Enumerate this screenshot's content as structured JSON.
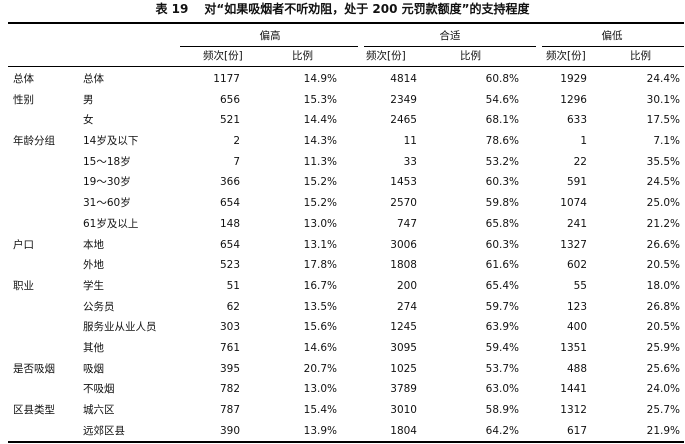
{
  "table": {
    "number": "表 19",
    "title": "对“如果吸烟者不听劝阻，处于 200 元罚款额度”的支持程度",
    "groups": [
      "偏高",
      "合适",
      "偏低"
    ],
    "col_freq": "频次[份]",
    "col_ratio": "比例",
    "rows": [
      {
        "cat": "总体",
        "sub": "总体",
        "v": [
          "1177",
          "14.9%",
          "4814",
          "60.8%",
          "1929",
          "24.4%"
        ]
      },
      {
        "cat": "性别",
        "sub": "男",
        "v": [
          "656",
          "15.3%",
          "2349",
          "54.6%",
          "1296",
          "30.1%"
        ]
      },
      {
        "cat": "",
        "sub": "女",
        "v": [
          "521",
          "14.4%",
          "2465",
          "68.1%",
          "633",
          "17.5%"
        ]
      },
      {
        "cat": "年龄分组",
        "sub": "14岁及以下",
        "v": [
          "2",
          "14.3%",
          "11",
          "78.6%",
          "1",
          "7.1%"
        ]
      },
      {
        "cat": "",
        "sub": "15～18岁",
        "v": [
          "7",
          "11.3%",
          "33",
          "53.2%",
          "22",
          "35.5%"
        ]
      },
      {
        "cat": "",
        "sub": "19～30岁",
        "v": [
          "366",
          "15.2%",
          "1453",
          "60.3%",
          "591",
          "24.5%"
        ]
      },
      {
        "cat": "",
        "sub": "31～60岁",
        "v": [
          "654",
          "15.2%",
          "2570",
          "59.8%",
          "1074",
          "25.0%"
        ]
      },
      {
        "cat": "",
        "sub": "61岁及以上",
        "v": [
          "148",
          "13.0%",
          "747",
          "65.8%",
          "241",
          "21.2%"
        ]
      },
      {
        "cat": "户口",
        "sub": "本地",
        "v": [
          "654",
          "13.1%",
          "3006",
          "60.3%",
          "1327",
          "26.6%"
        ]
      },
      {
        "cat": "",
        "sub": "外地",
        "v": [
          "523",
          "17.8%",
          "1808",
          "61.6%",
          "602",
          "20.5%"
        ]
      },
      {
        "cat": "职业",
        "sub": "学生",
        "v": [
          "51",
          "16.7%",
          "200",
          "65.4%",
          "55",
          "18.0%"
        ]
      },
      {
        "cat": "",
        "sub": "公务员",
        "v": [
          "62",
          "13.5%",
          "274",
          "59.7%",
          "123",
          "26.8%"
        ]
      },
      {
        "cat": "",
        "sub": "服务业从业人员",
        "v": [
          "303",
          "15.6%",
          "1245",
          "63.9%",
          "400",
          "20.5%"
        ]
      },
      {
        "cat": "",
        "sub": "其他",
        "v": [
          "761",
          "14.6%",
          "3095",
          "59.4%",
          "1351",
          "25.9%"
        ]
      },
      {
        "cat": "是否吸烟",
        "sub": "吸烟",
        "v": [
          "395",
          "20.7%",
          "1025",
          "53.7%",
          "488",
          "25.6%"
        ]
      },
      {
        "cat": "",
        "sub": "不吸烟",
        "v": [
          "782",
          "13.0%",
          "3789",
          "63.0%",
          "1441",
          "24.0%"
        ]
      },
      {
        "cat": "区县类型",
        "sub": "城六区",
        "v": [
          "787",
          "15.4%",
          "3010",
          "58.9%",
          "1312",
          "25.7%"
        ]
      },
      {
        "cat": "",
        "sub": "远郊区县",
        "v": [
          "390",
          "13.9%",
          "1804",
          "64.2%",
          "617",
          "21.9%"
        ]
      }
    ]
  }
}
